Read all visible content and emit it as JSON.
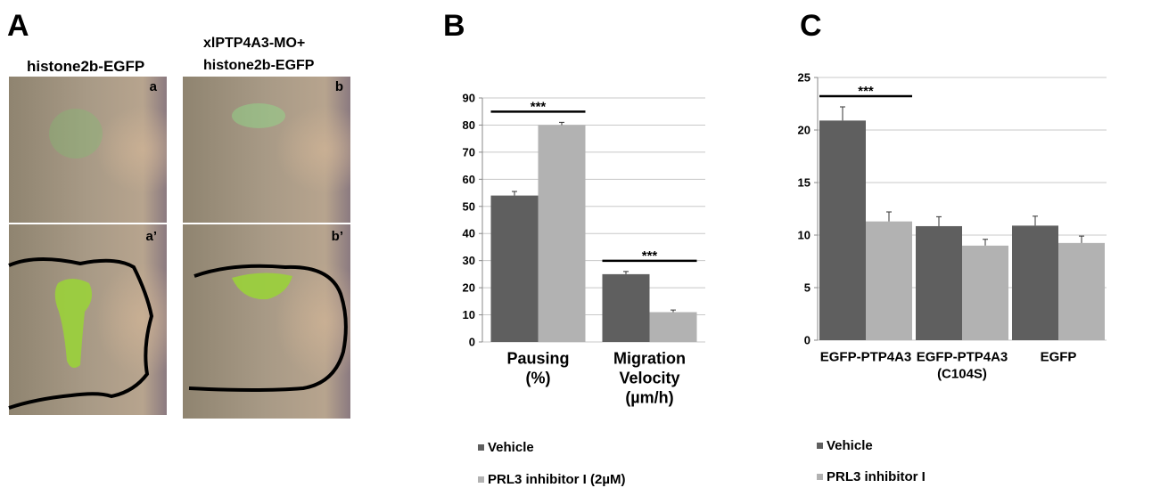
{
  "panel_a": {
    "label": "A",
    "left_title": "histone2b-EGFP",
    "right_title": [
      "xlPTP4A3-MO+",
      "histone2b-EGFP"
    ],
    "image_labels": [
      "a",
      "b",
      "a’",
      "b’"
    ]
  },
  "chart_data": [
    {
      "type": "bar",
      "panel_label": "B",
      "categories": [
        [
          "Pausing",
          "(%)"
        ],
        [
          "Migration",
          "Velocity",
          "(µm/h)"
        ]
      ],
      "series": [
        {
          "name": "Vehicle",
          "color": "#5f5f5f",
          "values": [
            54,
            25
          ],
          "errors": [
            1.5,
            1
          ]
        },
        {
          "name": "PRL3 inhibitor I (2µM)",
          "color": "#b2b2b2",
          "values": [
            80,
            11
          ],
          "errors": [
            1,
            0.8
          ]
        }
      ],
      "annotations": [
        "***",
        "***"
      ],
      "ylim": [
        0,
        90
      ],
      "yticks": [
        0,
        10,
        20,
        30,
        40,
        50,
        60,
        70,
        80,
        90
      ],
      "grid": true
    },
    {
      "type": "bar",
      "panel_label": "C",
      "categories": [
        [
          "EGFP-PTP4A3"
        ],
        [
          "EGFP-PTP4A3",
          "(C104S)"
        ],
        [
          "EGFP"
        ]
      ],
      "series": [
        {
          "name": "Vehicle",
          "color": "#5f5f5f",
          "values": [
            20.9,
            10.85,
            10.9
          ],
          "errors": [
            1.3,
            0.9,
            0.9
          ]
        },
        {
          "name": "PRL3 inhibitor I",
          "color": "#b2b2b2",
          "values": [
            11.3,
            9.0,
            9.25
          ],
          "errors": [
            0.9,
            0.6,
            0.65
          ]
        }
      ],
      "annotations": [
        "***",
        null,
        null
      ],
      "ylim": [
        0,
        25
      ],
      "yticks": [
        0,
        5,
        10,
        15,
        20,
        25
      ],
      "grid": true
    }
  ]
}
